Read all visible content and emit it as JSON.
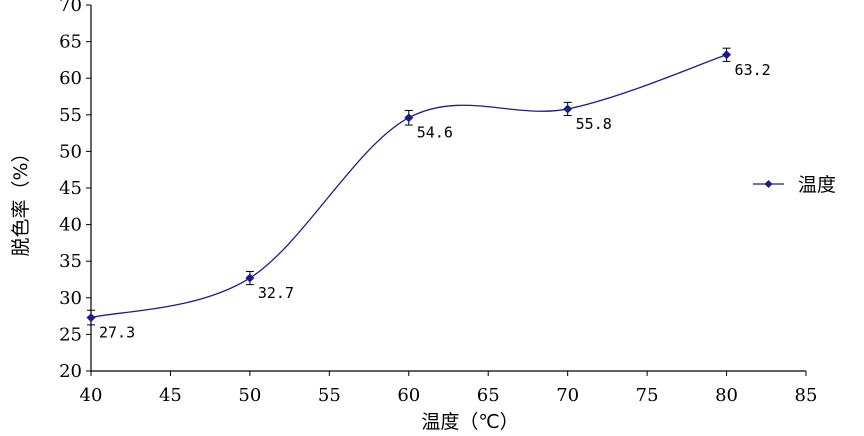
{
  "chart_data": {
    "type": "line",
    "xlabel": "温度（℃）",
    "ylabel": "脱色率（%）",
    "xlim": [
      40,
      85
    ],
    "ylim": [
      20,
      70
    ],
    "xticks": [
      40,
      45,
      50,
      55,
      60,
      65,
      70,
      75,
      80,
      85
    ],
    "yticks": [
      20,
      25,
      30,
      35,
      40,
      45,
      50,
      55,
      60,
      65,
      70
    ],
    "legend_position": "right",
    "series": [
      {
        "name": "温度",
        "color": "#1c1c8c",
        "marker": "diamond",
        "x": [
          40,
          50,
          60,
          70,
          80
        ],
        "y": [
          27.3,
          32.7,
          54.6,
          55.8,
          63.2
        ],
        "error": [
          1.0,
          0.9,
          1.0,
          0.9,
          0.9
        ],
        "labels": [
          "27.3",
          "32.7",
          "54.6",
          "55.8",
          "63.2"
        ]
      }
    ]
  }
}
